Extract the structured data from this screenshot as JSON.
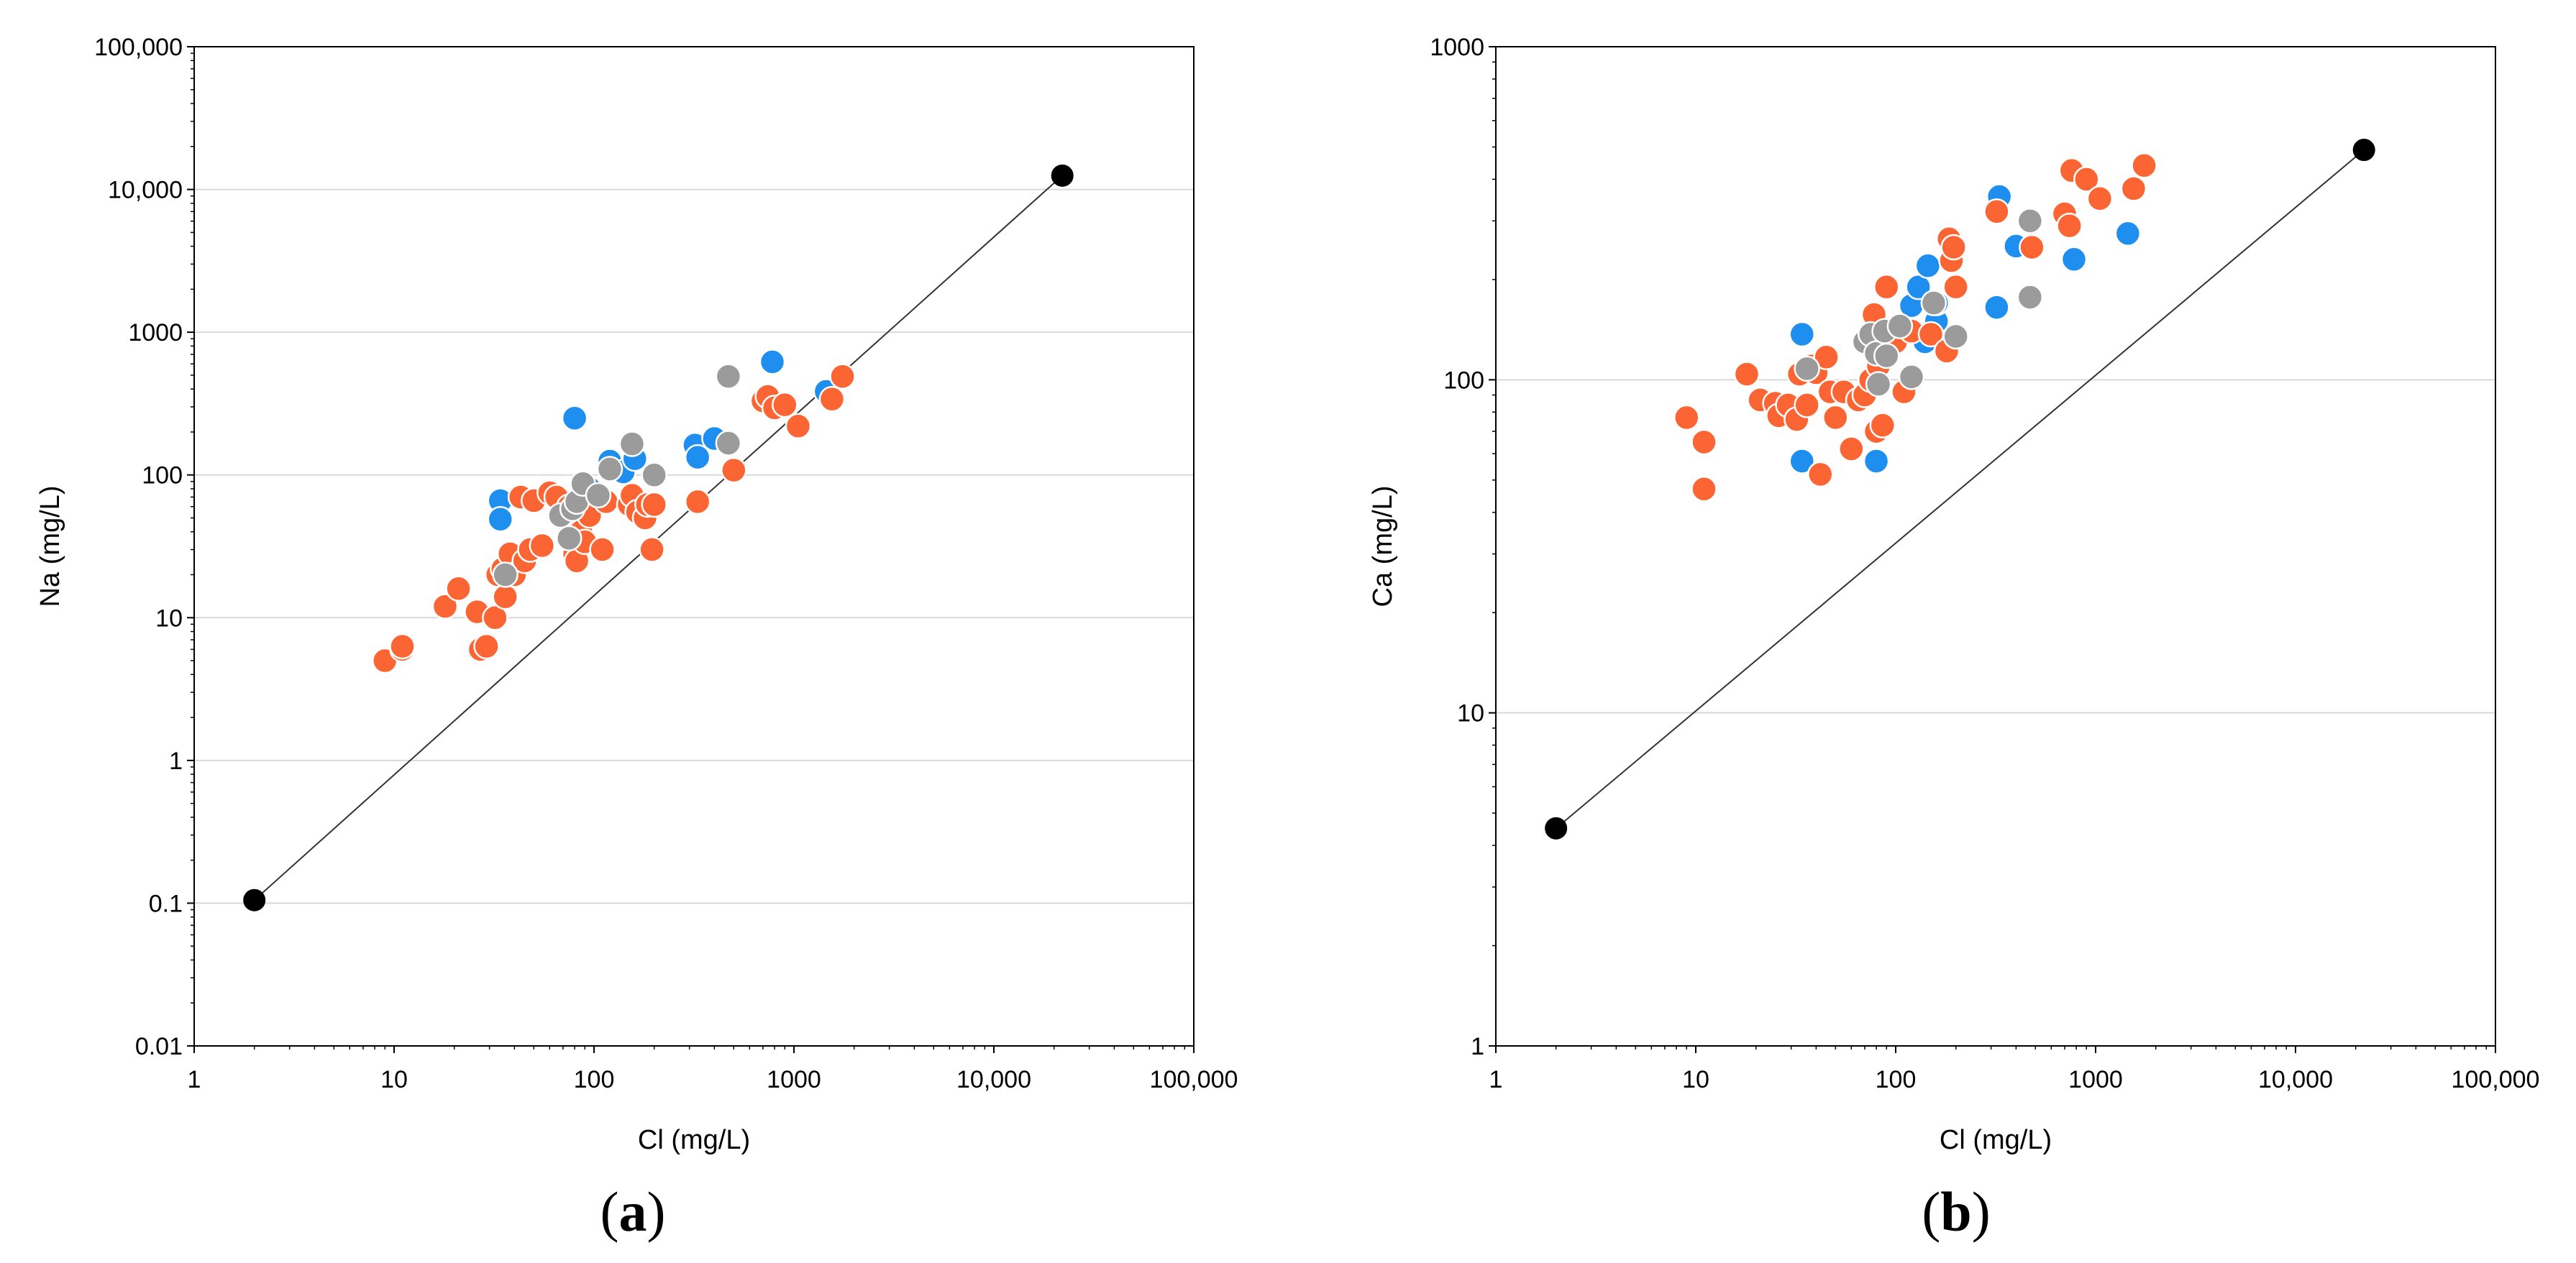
{
  "colors": {
    "blue": "#1f8fef",
    "orange": "#fb6534",
    "gray": "#9b9b9b",
    "black": "#000000",
    "gridline": "#d9d9d9",
    "frame": "#000000",
    "refline": "#333333"
  },
  "chart_data": [
    {
      "type": "scatter",
      "panel_label": "(a)",
      "panel_letter": "a",
      "xlabel": "Cl (mg/L)",
      "ylabel": "Na (mg/L)",
      "xscale": "log",
      "yscale": "log",
      "xlim": [
        1,
        100000
      ],
      "ylim": [
        0.01,
        100000
      ],
      "x_ticks": [
        {
          "value": 1,
          "label": "1"
        },
        {
          "value": 10,
          "label": "10"
        },
        {
          "value": 100,
          "label": "100"
        },
        {
          "value": 1000,
          "label": "1000"
        },
        {
          "value": 10000,
          "label": "10,000"
        },
        {
          "value": 100000,
          "label": "100,000"
        }
      ],
      "y_ticks": [
        {
          "value": 0.01,
          "label": "0.01"
        },
        {
          "value": 0.1,
          "label": "0.1"
        },
        {
          "value": 1,
          "label": "1"
        },
        {
          "value": 10,
          "label": "10"
        },
        {
          "value": 100,
          "label": "100"
        },
        {
          "value": 1000,
          "label": "1000"
        },
        {
          "value": 10000,
          "label": "10,000"
        },
        {
          "value": 100000,
          "label": "100,000"
        }
      ],
      "grid": "horizontal",
      "reference_line": {
        "x": [
          2,
          22000
        ],
        "y": [
          0.105,
          12500
        ]
      },
      "series": [
        {
          "name": "blue",
          "color": "blue",
          "points": [
            [
              34,
              66
            ],
            [
              34,
              49
            ],
            [
              80,
              250
            ],
            [
              120,
              125
            ],
            [
              140,
              105
            ],
            [
              160,
              130
            ],
            [
              320,
              162
            ],
            [
              330,
              133
            ],
            [
              400,
              180
            ],
            [
              780,
              620
            ],
            [
              1450,
              385
            ],
            [
              95,
              80
            ]
          ]
        },
        {
          "name": "orange",
          "color": "orange",
          "points": [
            [
              9,
              5
            ],
            [
              11,
              6
            ],
            [
              11,
              6.3
            ],
            [
              18,
              12
            ],
            [
              21,
              16
            ],
            [
              26,
              11
            ],
            [
              27,
              6
            ],
            [
              29,
              6.3
            ],
            [
              32,
              10
            ],
            [
              33,
              20
            ],
            [
              35,
              22
            ],
            [
              36,
              14
            ],
            [
              38,
              28
            ],
            [
              40,
              20
            ],
            [
              43,
              70
            ],
            [
              45,
              25
            ],
            [
              48,
              30
            ],
            [
              50,
              66
            ],
            [
              55,
              32
            ],
            [
              60,
              75
            ],
            [
              65,
              70
            ],
            [
              70,
              50
            ],
            [
              75,
              60
            ],
            [
              80,
              28
            ],
            [
              82,
              25
            ],
            [
              86,
              40
            ],
            [
              90,
              34
            ],
            [
              95,
              52
            ],
            [
              110,
              30
            ],
            [
              115,
              65
            ],
            [
              150,
              62
            ],
            [
              155,
              72
            ],
            [
              165,
              55
            ],
            [
              180,
              50
            ],
            [
              185,
              62
            ],
            [
              195,
              30
            ],
            [
              200,
              62
            ],
            [
              330,
              65
            ],
            [
              500,
              108
            ],
            [
              700,
              330
            ],
            [
              740,
              355
            ],
            [
              800,
              295
            ],
            [
              900,
              310
            ],
            [
              1050,
              220
            ],
            [
              1550,
              340
            ],
            [
              1750,
              490
            ]
          ]
        },
        {
          "name": "gray",
          "color": "gray",
          "points": [
            [
              36,
              20
            ],
            [
              68,
              52
            ],
            [
              75,
              36
            ],
            [
              78,
              58
            ],
            [
              82,
              65
            ],
            [
              88,
              87
            ],
            [
              105,
              72
            ],
            [
              120,
              110
            ],
            [
              155,
              165
            ],
            [
              200,
              100
            ],
            [
              470,
              490
            ],
            [
              470,
              167
            ]
          ]
        },
        {
          "name": "endpoints",
          "color": "black",
          "points": [
            [
              2,
              0.105
            ],
            [
              22000,
              12500
            ]
          ]
        }
      ]
    },
    {
      "type": "scatter",
      "panel_label": "(b)",
      "panel_letter": "b",
      "xlabel": "Cl (mg/L)",
      "ylabel": "Ca (mg/L)",
      "xscale": "log",
      "yscale": "log",
      "xlim": [
        1,
        100000
      ],
      "ylim": [
        1,
        1000
      ],
      "x_ticks": [
        {
          "value": 1,
          "label": "1"
        },
        {
          "value": 10,
          "label": "10"
        },
        {
          "value": 100,
          "label": "100"
        },
        {
          "value": 1000,
          "label": "1000"
        },
        {
          "value": 10000,
          "label": "10,000"
        },
        {
          "value": 100000,
          "label": "100,000"
        }
      ],
      "y_ticks": [
        {
          "value": 1,
          "label": "1"
        },
        {
          "value": 10,
          "label": "10"
        },
        {
          "value": 100,
          "label": "100"
        },
        {
          "value": 1000,
          "label": "1000"
        }
      ],
      "grid": "horizontal",
      "reference_line": {
        "x": [
          2,
          22000
        ],
        "y": [
          4.5,
          490
        ]
      },
      "series": [
        {
          "name": "blue",
          "color": "blue",
          "points": [
            [
              34,
              137
            ],
            [
              34,
              57
            ],
            [
              80,
              57
            ],
            [
              120,
              167
            ],
            [
              130,
              190
            ],
            [
              140,
              130
            ],
            [
              145,
              220
            ],
            [
              160,
              150
            ],
            [
              160,
              170
            ],
            [
              320,
              165
            ],
            [
              330,
              355
            ],
            [
              400,
              252
            ],
            [
              780,
              230
            ],
            [
              1450,
              275
            ]
          ]
        },
        {
          "name": "orange",
          "color": "orange",
          "points": [
            [
              9,
              77
            ],
            [
              11,
              65
            ],
            [
              11,
              47
            ],
            [
              18,
              104
            ],
            [
              21,
              87
            ],
            [
              25,
              85
            ],
            [
              26,
              78
            ],
            [
              29,
              84
            ],
            [
              32,
              76
            ],
            [
              33,
              104
            ],
            [
              36,
              84
            ],
            [
              38,
              110
            ],
            [
              40,
              105
            ],
            [
              42,
              52
            ],
            [
              45,
              117
            ],
            [
              47,
              92
            ],
            [
              50,
              77
            ],
            [
              55,
              92
            ],
            [
              60,
              62
            ],
            [
              65,
              87
            ],
            [
              70,
              90
            ],
            [
              75,
              100
            ],
            [
              78,
              157
            ],
            [
              80,
              70
            ],
            [
              82,
              110
            ],
            [
              86,
              73
            ],
            [
              90,
              190
            ],
            [
              100,
              130
            ],
            [
              110,
              92
            ],
            [
              120,
              140
            ],
            [
              150,
              137
            ],
            [
              155,
              170
            ],
            [
              180,
              122
            ],
            [
              185,
              265
            ],
            [
              190,
              228
            ],
            [
              195,
              250
            ],
            [
              200,
              190
            ],
            [
              320,
              320
            ],
            [
              480,
              250
            ],
            [
              700,
              315
            ],
            [
              740,
              290
            ],
            [
              760,
              425
            ],
            [
              900,
              400
            ],
            [
              1050,
              350
            ],
            [
              1550,
              375
            ],
            [
              1750,
              440
            ]
          ]
        },
        {
          "name": "gray",
          "color": "gray",
          "points": [
            [
              36,
              108
            ],
            [
              70,
              130
            ],
            [
              75,
              137
            ],
            [
              80,
              120
            ],
            [
              82,
              97
            ],
            [
              88,
              140
            ],
            [
              90,
              118
            ],
            [
              105,
              145
            ],
            [
              120,
              102
            ],
            [
              155,
              170
            ],
            [
              200,
              135
            ],
            [
              470,
              300
            ],
            [
              470,
              177
            ]
          ]
        },
        {
          "name": "endpoints",
          "color": "black",
          "points": [
            [
              2,
              4.5
            ],
            [
              22000,
              490
            ]
          ]
        }
      ]
    }
  ]
}
